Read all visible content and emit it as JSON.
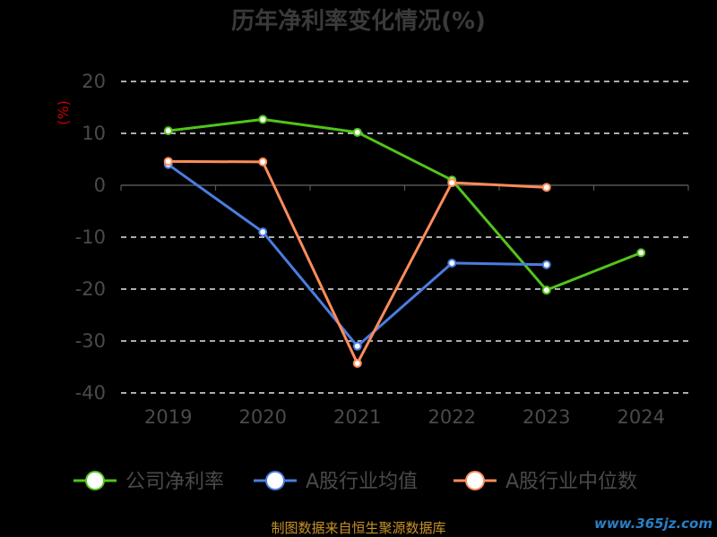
{
  "chart_data": {
    "type": "line",
    "title": "历年净利率变化情况(%)",
    "ylabel": "(%)",
    "xlabel": "",
    "categories": [
      "2019",
      "2020",
      "2021",
      "2022",
      "2023",
      "2024"
    ],
    "ylim": [
      -40,
      20
    ],
    "yticks": [
      20,
      10,
      0,
      -10,
      -20,
      -30,
      -40
    ],
    "grid": true,
    "legend_position": "bottom",
    "series": [
      {
        "name": "公司净利率",
        "color": "#52c41a",
        "values": [
          10.5,
          12.7,
          10.2,
          1.0,
          -20.2,
          -13.0
        ]
      },
      {
        "name": "A股行业均值",
        "color": "#4a7de0",
        "values": [
          4.0,
          -9.0,
          -31.0,
          -15.0,
          -15.3,
          null
        ]
      },
      {
        "name": "A股行业中位数",
        "color": "#ff8c5a",
        "values": [
          4.6,
          4.5,
          -34.3,
          0.5,
          -0.4,
          null
        ]
      }
    ]
  },
  "footer": {
    "source": "制图数据来自恒生聚源数据库",
    "watermark": "www.365jz.com"
  }
}
